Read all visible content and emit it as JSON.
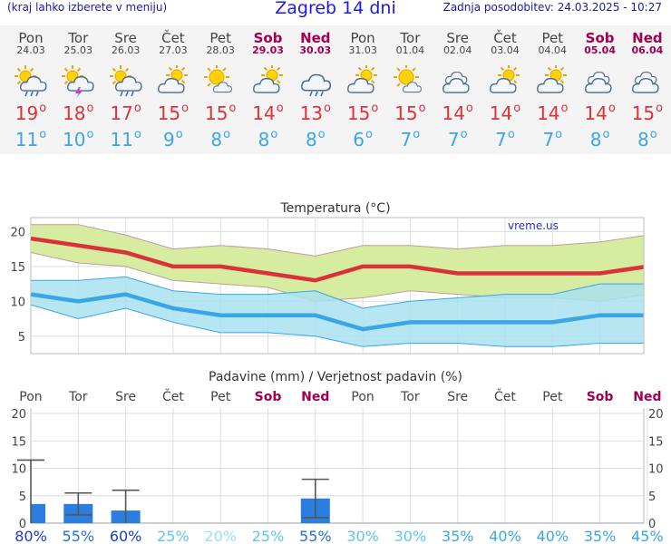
{
  "header": {
    "hint": "(kraj lahko izberete v meniju)",
    "title": "Zagreb 14 dni",
    "updated": "Zadnja posodobitev: 24.03.2025 - 10:27"
  },
  "days": [
    {
      "name": "Pon",
      "date": "24.03",
      "weekend": false,
      "icon": "sun-cloud-rain-icon",
      "max": "19",
      "min": "11"
    },
    {
      "name": "Tor",
      "date": "25.03",
      "weekend": false,
      "icon": "sun-cloud-thunder-icon",
      "max": "18",
      "min": "10"
    },
    {
      "name": "Sre",
      "date": "26.03",
      "weekend": false,
      "icon": "sun-cloud-rain-icon",
      "max": "17",
      "min": "11"
    },
    {
      "name": "Čet",
      "date": "27.03",
      "weekend": false,
      "icon": "sun-cloud-icon",
      "max": "15",
      "min": "9"
    },
    {
      "name": "Pet",
      "date": "28.03",
      "weekend": false,
      "icon": "sun-small-cloud-icon",
      "max": "15",
      "min": "8"
    },
    {
      "name": "Sob",
      "date": "29.03",
      "weekend": true,
      "icon": "sun-cloud-icon",
      "max": "14",
      "min": "8"
    },
    {
      "name": "Ned",
      "date": "30.03",
      "weekend": true,
      "icon": "cloud-rain-icon",
      "max": "13",
      "min": "8"
    },
    {
      "name": "Pon",
      "date": "31.03",
      "weekend": false,
      "icon": "sun-cloud-icon",
      "max": "15",
      "min": "6"
    },
    {
      "name": "Tor",
      "date": "01.04",
      "weekend": false,
      "icon": "sun-small-cloud-icon",
      "max": "15",
      "min": "7"
    },
    {
      "name": "Sre",
      "date": "02.04",
      "weekend": false,
      "icon": "cloud-icon",
      "max": "14",
      "min": "7"
    },
    {
      "name": "Čet",
      "date": "03.04",
      "weekend": false,
      "icon": "sun-cloud-icon",
      "max": "14",
      "min": "7"
    },
    {
      "name": "Pet",
      "date": "04.04",
      "weekend": false,
      "icon": "sun-cloud-icon",
      "max": "14",
      "min": "7"
    },
    {
      "name": "Sob",
      "date": "05.04",
      "weekend": true,
      "icon": "cloud-icon",
      "max": "14",
      "min": "8"
    },
    {
      "name": "Ned",
      "date": "06.04",
      "weekend": true,
      "icon": "cloud-icon",
      "max": "15",
      "min": "8"
    }
  ],
  "colors": {
    "max_line": "#d9323c",
    "max_band": "#d6eca0",
    "min_line": "#3aa6e6",
    "min_band": "#a8e2f0",
    "bar": "#2a7ee0",
    "weekend": "#a00050"
  },
  "chart_data": [
    {
      "type": "line",
      "title": "Temperatura (°C)",
      "watermark": "vreme.us",
      "x": [
        "24.03",
        "25.03",
        "26.03",
        "27.03",
        "28.03",
        "29.03",
        "30.03",
        "31.03",
        "01.04",
        "02.04",
        "03.04",
        "04.04",
        "05.04",
        "06.04"
      ],
      "ylim": [
        2.5,
        22
      ],
      "yticks": [
        5,
        10,
        15,
        20
      ],
      "grid": true,
      "series": [
        {
          "name": "max",
          "values": [
            19,
            18,
            17,
            15,
            15,
            14,
            13,
            15,
            15,
            14,
            14,
            14,
            14,
            15
          ],
          "band_high": [
            21,
            21,
            19.5,
            17.5,
            18,
            17.5,
            16.5,
            18,
            18,
            17.5,
            18,
            18,
            18.5,
            19.5
          ],
          "band_low": [
            17,
            15.5,
            15,
            13,
            12.5,
            12,
            10,
            10.5,
            11.5,
            11,
            10.5,
            10.5,
            10,
            11
          ]
        },
        {
          "name": "min",
          "values": [
            11,
            10,
            11,
            9,
            8,
            8,
            8,
            6,
            7,
            7,
            7,
            7,
            8,
            8
          ],
          "band_high": [
            13,
            13,
            13.5,
            11.5,
            11,
            11,
            11.5,
            9,
            10,
            10.5,
            11,
            11,
            12.5,
            12.5
          ],
          "band_low": [
            9.5,
            7.5,
            9,
            7,
            5.5,
            5.5,
            5,
            3.5,
            4,
            4,
            3.5,
            3.5,
            4,
            4
          ]
        }
      ]
    },
    {
      "type": "bar",
      "title": "Padavine (mm) / Verjetnost padavin (%)",
      "categories": [
        "Pon",
        "Tor",
        "Sre",
        "Čet",
        "Pet",
        "Sob",
        "Ned",
        "Pon",
        "Tor",
        "Sre",
        "Čet",
        "Pet",
        "Sob",
        "Ned"
      ],
      "weekend": [
        false,
        false,
        false,
        false,
        false,
        true,
        true,
        false,
        false,
        false,
        false,
        false,
        true,
        true
      ],
      "ylim": [
        0,
        21
      ],
      "yticks": [
        0,
        5,
        10,
        15,
        20
      ],
      "values": [
        3.5,
        3.5,
        2.3,
        0,
        0,
        0,
        4.5,
        0,
        0,
        0,
        0,
        0,
        0,
        0
      ],
      "err_low": [
        0,
        1.5,
        0,
        null,
        null,
        null,
        1,
        null,
        null,
        null,
        null,
        null,
        null,
        null
      ],
      "err_high": [
        11.5,
        5.5,
        6,
        null,
        null,
        null,
        8,
        null,
        null,
        null,
        null,
        null,
        null,
        null
      ],
      "probability": [
        "80%",
        "55%",
        "60%",
        "25%",
        "20%",
        "25%",
        "55%",
        "30%",
        "30%",
        "35%",
        "40%",
        "40%",
        "35%",
        "45%"
      ]
    }
  ]
}
